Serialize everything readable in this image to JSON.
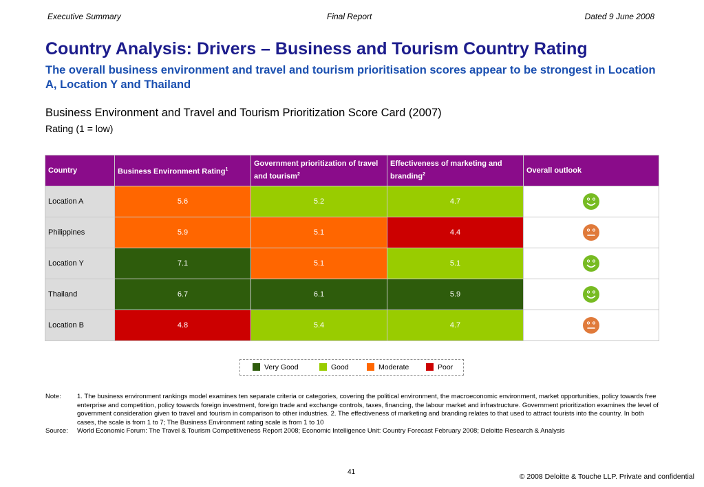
{
  "header": {
    "left": "Executive Summary",
    "center": "Final Report",
    "right": "Dated 9 June 2008"
  },
  "title": "Country Analysis: Drivers – Business and Tourism Country Rating",
  "subtitle": "The overall business environment and travel and tourism prioritisation scores appear to be strongest in Location A, Location Y and Thailand",
  "chart_heading": "Business Environment and Travel and Tourism Prioritization Score Card (2007)",
  "chart_subheading": "Rating (1 = low)",
  "table": {
    "columns": [
      {
        "label": "Country",
        "sup": ""
      },
      {
        "label": "Business Environment Rating",
        "sup": "1"
      },
      {
        "label": "Government prioritization of travel and tourism",
        "sup": "2"
      },
      {
        "label": "Effectiveness of marketing and branding",
        "sup": "2"
      },
      {
        "label": "Overall outlook",
        "sup": ""
      }
    ],
    "rows": [
      {
        "country": "Location A",
        "scores": [
          {
            "value": "5.6",
            "rating": "Moderate"
          },
          {
            "value": "5.2",
            "rating": "Good"
          },
          {
            "value": "4.7",
            "rating": "Good"
          }
        ],
        "outlook": "happy-face-icon"
      },
      {
        "country": "Philippines",
        "scores": [
          {
            "value": "5.9",
            "rating": "Moderate"
          },
          {
            "value": "5.1",
            "rating": "Moderate"
          },
          {
            "value": "4.4",
            "rating": "Poor"
          }
        ],
        "outlook": "neutral-face-icon"
      },
      {
        "country": "Location Y",
        "scores": [
          {
            "value": "7.1",
            "rating": "Very Good"
          },
          {
            "value": "5.1",
            "rating": "Moderate"
          },
          {
            "value": "5.1",
            "rating": "Good"
          }
        ],
        "outlook": "happy-face-icon"
      },
      {
        "country": "Thailand",
        "scores": [
          {
            "value": "6.7",
            "rating": "Very Good"
          },
          {
            "value": "6.1",
            "rating": "Very Good"
          },
          {
            "value": "5.9",
            "rating": "Very Good"
          }
        ],
        "outlook": "happy-face-icon"
      },
      {
        "country": "Location B",
        "scores": [
          {
            "value": "4.8",
            "rating": "Poor"
          },
          {
            "value": "5.4",
            "rating": "Good"
          },
          {
            "value": "4.7",
            "rating": "Good"
          }
        ],
        "outlook": "neutral-face-icon"
      }
    ]
  },
  "legend": [
    {
      "label": "Very Good",
      "color": "#2e5c0c"
    },
    {
      "label": "Good",
      "color": "#99cc00"
    },
    {
      "label": "Moderate",
      "color": "#ff6600"
    },
    {
      "label": "Poor",
      "color": "#cc0000"
    }
  ],
  "outlook_colors": {
    "happy-face-icon": "#77bb22",
    "neutral-face-icon": "#e07a3a"
  },
  "notes": {
    "note_label": "Note:",
    "note_text": "1. The business environment rankings model examines ten separate criteria or categories, covering the political environment, the macroeconomic environment, market opportunities, policy towards free enterprise and competition, policy towards foreign investment, foreign trade and exchange controls, taxes, financing, the labour market and infrastructure. Government prioritization examines the level of government consideration given to travel and tourism in comparison to other industries. 2. The effectiveness of marketing and branding relates to that used to attract tourists into the country. In both cases, the scale is from 1 to 7; The Business Environment  rating scale is from 1 to 10",
    "source_label": "Source:",
    "source_text": "World Economic Forum: The Travel & Tourism Competitiveness Report 2008; Economic Intelligence Unit: Country Forecast February 2008; Deloitte Research & Analysis"
  },
  "page_number": "41",
  "copyright": "© 2008 Deloitte & Touche LLP. Private and confidential"
}
